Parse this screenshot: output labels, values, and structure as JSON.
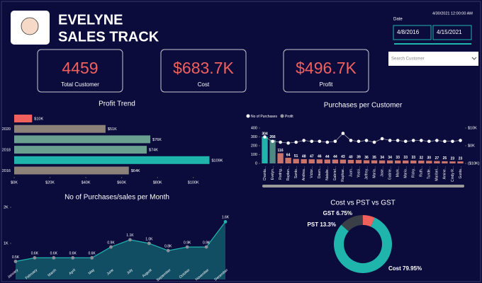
{
  "header": {
    "title_line1": "EVELYNE",
    "title_line2": "SALES TRACK"
  },
  "filters": {
    "date_label": "Date",
    "date_value": "4/30/2021 12:00:00 AM",
    "start_date": "4/8/2016",
    "end_date": "4/15/2021",
    "search_placeholder": "Search Customer"
  },
  "kpis": [
    {
      "value": "4459",
      "label": "Total Customer"
    },
    {
      "value": "$683.7K",
      "label": "Cost"
    },
    {
      "value": "$496.7K",
      "label": "Profit"
    }
  ],
  "chart_data": [
    {
      "type": "barh",
      "title": "Profit Trend",
      "categories": [
        null,
        "2020",
        null,
        "2018",
        null,
        "2016"
      ],
      "values": [
        10,
        51,
        76,
        74,
        109,
        64
      ],
      "value_labels": [
        "$10K",
        "$51K",
        "$76K",
        "$74K",
        "$109K",
        "$64K"
      ],
      "colors": [
        "#f0605d",
        "#8c8279",
        "#6aa08f",
        "#6aa08f",
        "#1fb5ac",
        "#8c8279"
      ],
      "xlim": [
        0,
        110
      ],
      "xticks": [
        {
          "value": 0,
          "label": "$0K"
        },
        {
          "value": 20,
          "label": "$20K"
        },
        {
          "value": 40,
          "label": "$40K"
        },
        {
          "value": 60,
          "label": "$60K"
        },
        {
          "value": 80,
          "label": "$80K"
        },
        {
          "value": 100,
          "label": "$100K"
        }
      ]
    },
    {
      "type": "combo",
      "title": "Purchases per Customer",
      "categories": [
        "Chanta...",
        "Evelyn...",
        "Rodrig...",
        "Raptan...",
        "Santo...",
        "Andrea...",
        "Victor...",
        "Dawn...",
        "Natalie...",
        "Gabriel...",
        "Raphae...",
        "Juan...",
        "Yossi...",
        "Jeffrey...",
        "Maria...",
        "Jose...",
        "Gabrie...",
        "Mark...",
        "Mario...",
        "Ricky...",
        "Ruth...",
        "Tunde...",
        "Maribel...",
        "Amine...",
        "Cindy R...",
        "Gusta..."
      ],
      "series": [
        {
          "name": "No of Purchases",
          "color": "#ffffff",
          "colors": [
            "#1fb5ac",
            "#4f8a82",
            "#c9736a",
            "#c9736a",
            "#c9736a",
            "#c9736a",
            "#c9736a",
            "#c9736a",
            "#c9736a",
            "#c9736a",
            "#c9736a",
            "#c9736a",
            "#c9736a",
            "#c9736a",
            "#c9736a",
            "#c9736a",
            "#c9736a",
            "#c9736a",
            "#c9736a",
            "#c9736a",
            "#c9736a",
            "#c9736a",
            "#c9736a",
            "#c9736a",
            "#c9736a",
            "#c9736a"
          ],
          "values": [
            304,
            266,
            116,
            64,
            51,
            48,
            47,
            46,
            44,
            44,
            43,
            40,
            39,
            36,
            35,
            34,
            34,
            33,
            33,
            33,
            32,
            30,
            27,
            25,
            23,
            23
          ]
        },
        {
          "name": "Profit",
          "color": "#9a9a9a",
          "axis": "y2",
          "values": [
            5,
            2.5,
            2,
            1.5,
            2,
            3,
            2.5,
            2.5,
            2,
            2.5,
            7,
            3,
            2.5,
            3,
            2,
            4,
            3,
            3,
            2.5,
            3,
            3,
            2.5,
            3,
            2.5,
            2.5,
            3
          ]
        }
      ],
      "ylim": [
        0,
        400
      ],
      "yticks": [
        0,
        100,
        200,
        300,
        400
      ],
      "y2lim": [
        -10,
        10
      ],
      "y2ticks": [
        {
          "value": 10,
          "label": "$10K"
        },
        {
          "value": 0,
          "label": "$0K"
        },
        {
          "value": -10,
          "label": "($10K)"
        }
      ]
    },
    {
      "type": "area",
      "title": "No of Purchases/sales per Month",
      "categories": [
        "January",
        "February",
        "March",
        "April",
        "May",
        "June",
        "July",
        "August",
        "September",
        "October",
        "November",
        "December"
      ],
      "values": [
        0.5,
        0.6,
        0.6,
        0.6,
        0.6,
        0.9,
        1.1,
        1.0,
        0.8,
        0.9,
        0.9,
        1.6
      ],
      "value_labels": [
        "0.5K",
        "0.6K",
        "0.6K",
        "0.6K",
        "0.6K",
        "0.9K",
        "1.1K",
        "1.0K",
        "0.8K",
        "0.9K",
        "0.9K",
        "1.6K"
      ],
      "color": "#1fb5ac",
      "ylim": [
        0,
        2
      ],
      "yticks": [
        {
          "value": 1,
          "label": "1K"
        },
        {
          "value": 2,
          "label": "2K"
        }
      ]
    },
    {
      "type": "donut",
      "title": "Cost vs PST vs GST",
      "categories": [
        "Cost",
        "PST",
        "GST"
      ],
      "values": [
        79.95,
        13.3,
        6.75
      ],
      "value_labels": [
        "79.95%",
        "13.3%",
        "6.75%"
      ],
      "colors": [
        "#1fb5ac",
        "#3a3f47",
        "#f0605d"
      ]
    }
  ]
}
